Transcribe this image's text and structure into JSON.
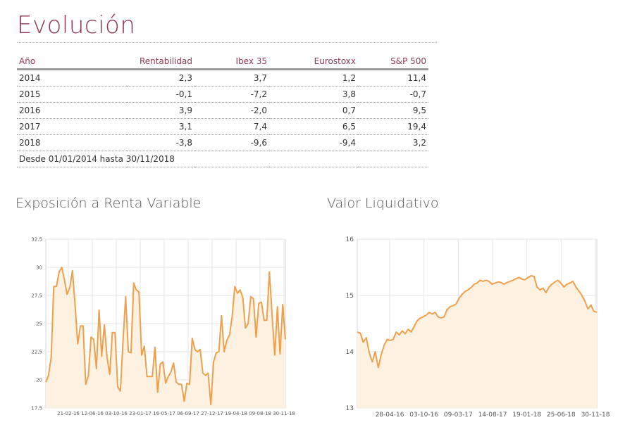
{
  "page": {
    "title": "Evolución"
  },
  "table": {
    "headers": [
      "Año",
      "Rentabilidad",
      "Ibex 35",
      "Eurostoxx",
      "S&P 500"
    ],
    "rows": [
      [
        "2014",
        "2,3",
        "3,7",
        "1,2",
        "11,4"
      ],
      [
        "2015",
        "-0,1",
        "-7,2",
        "3,8",
        "-0,7"
      ],
      [
        "2016",
        "3,9",
        "-2,0",
        "0,7",
        "9,5"
      ],
      [
        "2017",
        "3,1",
        "7,4",
        "6,5",
        "19,4"
      ],
      [
        "2018",
        "-3,8",
        "-9,6",
        "-9,4",
        "3,2"
      ]
    ],
    "note": "Desde 01/01/2014 hasta 30/11/2018"
  },
  "colors": {
    "accent": "#8e3a4f",
    "line": "#f0a04b",
    "fill": "#fdf1e1"
  },
  "chart_data": [
    {
      "type": "area",
      "title": "Exposición a Renta Variable",
      "ylim": [
        17.5,
        32.5
      ],
      "yticks": [
        "32.5",
        "30",
        "27.5",
        "25",
        "22.5",
        "20",
        "17.5"
      ],
      "xticks": [
        "21-02-16",
        "12-06-16",
        "03-10-16",
        "23-01-17",
        "16-05-17",
        "06-09-17",
        "27-12-17",
        "19-04-18",
        "09-08-18",
        "30-11-18"
      ],
      "grid": true,
      "values": [
        19.8,
        20.4,
        22.0,
        28.3,
        28.3,
        29.6,
        30.0,
        28.9,
        27.6,
        28.2,
        29.7,
        26.6,
        23.2,
        24.8,
        24.8,
        19.6,
        20.4,
        23.8,
        23.6,
        21.0,
        26.2,
        22.1,
        24.9,
        22.0,
        20.5,
        24.2,
        24.2,
        19.4,
        19.0,
        23.5,
        27.4,
        22.5,
        22.4,
        28.6,
        28.0,
        27.8,
        22.2,
        23.0,
        20.3,
        20.3,
        20.3,
        22.9,
        18.9,
        21.4,
        21.6,
        19.7,
        20.3,
        20.7,
        21.5,
        19.8,
        19.6,
        19.6,
        18.1,
        19.7,
        19.6,
        23.7,
        22.7,
        22.5,
        22.7,
        20.6,
        20.4,
        20.6,
        17.8,
        21.6,
        22.4,
        22.5,
        25.7,
        22.5,
        23.5,
        24.0,
        25.6,
        28.3,
        27.7,
        28.0,
        27.3,
        24.6,
        25.0,
        27.4,
        27.2,
        23.8,
        26.8,
        26.9,
        25.3,
        25.3,
        29.6,
        25.8,
        22.2,
        26.5,
        22.3,
        26.7,
        23.6
      ]
    },
    {
      "type": "area",
      "title": "Valor Liquidativo",
      "ylim": [
        13,
        16
      ],
      "yticks": [
        "16",
        "15",
        "14",
        "13"
      ],
      "xticks": [
        "28-04-16",
        "03-10-16",
        "09-03-17",
        "14-08-17",
        "19-01-18",
        "25-06-18",
        "30-11-18"
      ],
      "grid": true,
      "values": [
        14.35,
        14.33,
        14.17,
        14.25,
        13.98,
        13.82,
        14.0,
        13.72,
        13.95,
        14.12,
        14.22,
        14.2,
        14.22,
        14.35,
        14.3,
        14.37,
        14.32,
        14.4,
        14.35,
        14.45,
        14.55,
        14.6,
        14.62,
        14.65,
        14.7,
        14.67,
        14.7,
        14.62,
        14.6,
        14.62,
        14.75,
        14.8,
        14.82,
        14.85,
        14.95,
        15.02,
        15.07,
        15.1,
        15.14,
        15.2,
        15.22,
        15.27,
        15.25,
        15.27,
        15.25,
        15.2,
        15.22,
        15.24,
        15.23,
        15.2,
        15.23,
        15.25,
        15.27,
        15.3,
        15.32,
        15.29,
        15.28,
        15.32,
        15.35,
        15.34,
        15.15,
        15.1,
        15.13,
        15.05,
        15.15,
        15.2,
        15.24,
        15.27,
        15.22,
        15.15,
        15.2,
        15.22,
        15.25,
        15.15,
        15.08,
        15.0,
        14.9,
        14.76,
        14.83,
        14.72,
        14.7
      ]
    }
  ]
}
